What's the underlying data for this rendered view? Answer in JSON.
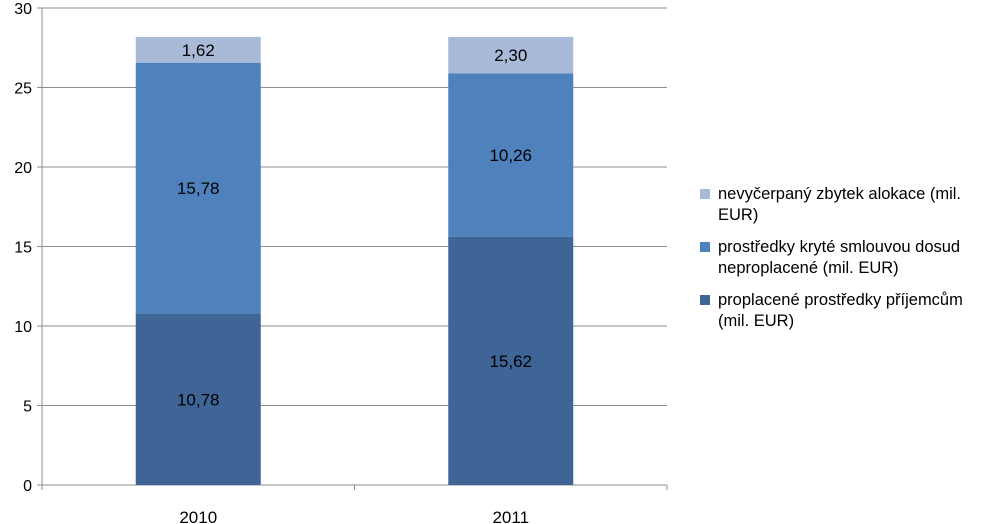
{
  "chart_data": {
    "type": "bar",
    "stacked": true,
    "categories": [
      "2010",
      "2011"
    ],
    "series": [
      {
        "name": "proplacené prostředky příjemcům (mil. EUR)",
        "values": [
          10.78,
          15.62
        ],
        "labels": [
          "10,78",
          "15,62"
        ],
        "color": "#3e6595"
      },
      {
        "name": "prostředky kryté smlouvou dosud neproplacené (mil. EUR)",
        "values": [
          15.78,
          10.26
        ],
        "labels": [
          "15,78",
          "10,26"
        ],
        "color": "#4f81bd"
      },
      {
        "name": "nevyčerpaný zbytek alokace (mil. EUR)",
        "values": [
          1.62,
          2.3
        ],
        "labels": [
          "1,62",
          "2,30"
        ],
        "color": "#a9b9d8"
      }
    ],
    "yticks": [
      "0",
      "5",
      "10",
      "15",
      "20",
      "25",
      "30"
    ],
    "ylim": [
      0,
      30
    ],
    "grid": true,
    "legend_position": "right",
    "title": "",
    "xlabel": "",
    "ylabel": ""
  },
  "legend": [
    {
      "lines": [
        "nevyčerpaný zbytek alokace (mil.",
        "EUR)"
      ],
      "color": "#a9b9d8"
    },
    {
      "lines": [
        "prostředky kryté smlouvou dosud",
        "neproplacené (mil. EUR)"
      ],
      "color": "#4f81bd"
    },
    {
      "lines": [
        "proplacené prostředky příjemcům",
        "(mil. EUR)"
      ],
      "color": "#3e6595"
    }
  ]
}
